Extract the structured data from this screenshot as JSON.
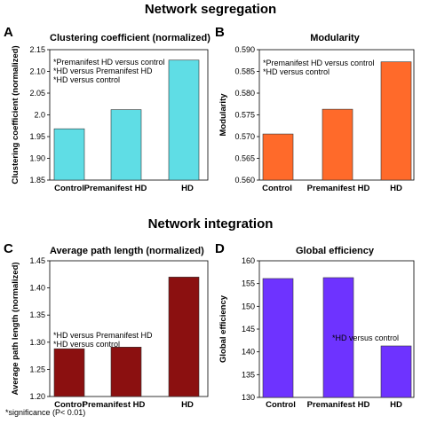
{
  "sections": {
    "segregation_title": "Network segregation",
    "integration_title": "Network integration"
  },
  "footnote": "*significance (P< 0.01)",
  "chart_data": [
    {
      "panel": "A",
      "type": "bar",
      "title": "Clustering coefficient (normalized)",
      "ylabel": "Clustering coefficient (normalized)",
      "categories": [
        "Control",
        "Premanifest HD",
        "HD"
      ],
      "values": [
        1.968,
        2.012,
        2.126
      ],
      "ylim": [
        1.85,
        2.15
      ],
      "yticks": [
        "1.85",
        "1.90",
        "1.95",
        "2.0",
        "2.05",
        "2.10",
        "2.15"
      ],
      "color": "#5fdde5",
      "annotations": [
        "*Premanifest HD versus control",
        "*HD versus Premanifest HD",
        "*HD versus control"
      ]
    },
    {
      "panel": "B",
      "type": "bar",
      "title": "Modularity",
      "ylabel": "Modularity",
      "categories": [
        "Control",
        "Premanifest HD",
        "HD"
      ],
      "values": [
        0.5706,
        0.5763,
        0.5872
      ],
      "ylim": [
        0.56,
        0.59
      ],
      "yticks": [
        "0.560",
        "0.565",
        "0.570",
        "0.575",
        "0.580",
        "0.585",
        "0.590"
      ],
      "color": "#ff6a2a",
      "annotations": [
        "*Premanifest HD versus control",
        "*HD versus control"
      ]
    },
    {
      "panel": "C",
      "type": "bar",
      "title": "Average path length (normalized)",
      "ylabel": "Average path length (normalized)",
      "categories": [
        "Control",
        "Premanifest HD",
        "HD"
      ],
      "values": [
        1.288,
        1.291,
        1.42
      ],
      "ylim": [
        1.2,
        1.45
      ],
      "yticks": [
        "1.20",
        "1.25",
        "1.30",
        "1.35",
        "1.40",
        "1.45"
      ],
      "color": "#8b1010",
      "annotations": [
        "*HD versus  Premanifest HD",
        "*HD versus control"
      ]
    },
    {
      "panel": "D",
      "type": "bar",
      "title": "Global efficiency",
      "ylabel": "Global efficiency",
      "categories": [
        "Control",
        "Premanifest HD",
        "HD"
      ],
      "values": [
        156.1,
        156.3,
        141.3
      ],
      "ylim": [
        130,
        160
      ],
      "yticks": [
        "130",
        "135",
        "140",
        "145",
        "150",
        "155",
        "160"
      ],
      "color": "#6e33ff",
      "annotations": [
        "*HD versus control"
      ]
    }
  ]
}
